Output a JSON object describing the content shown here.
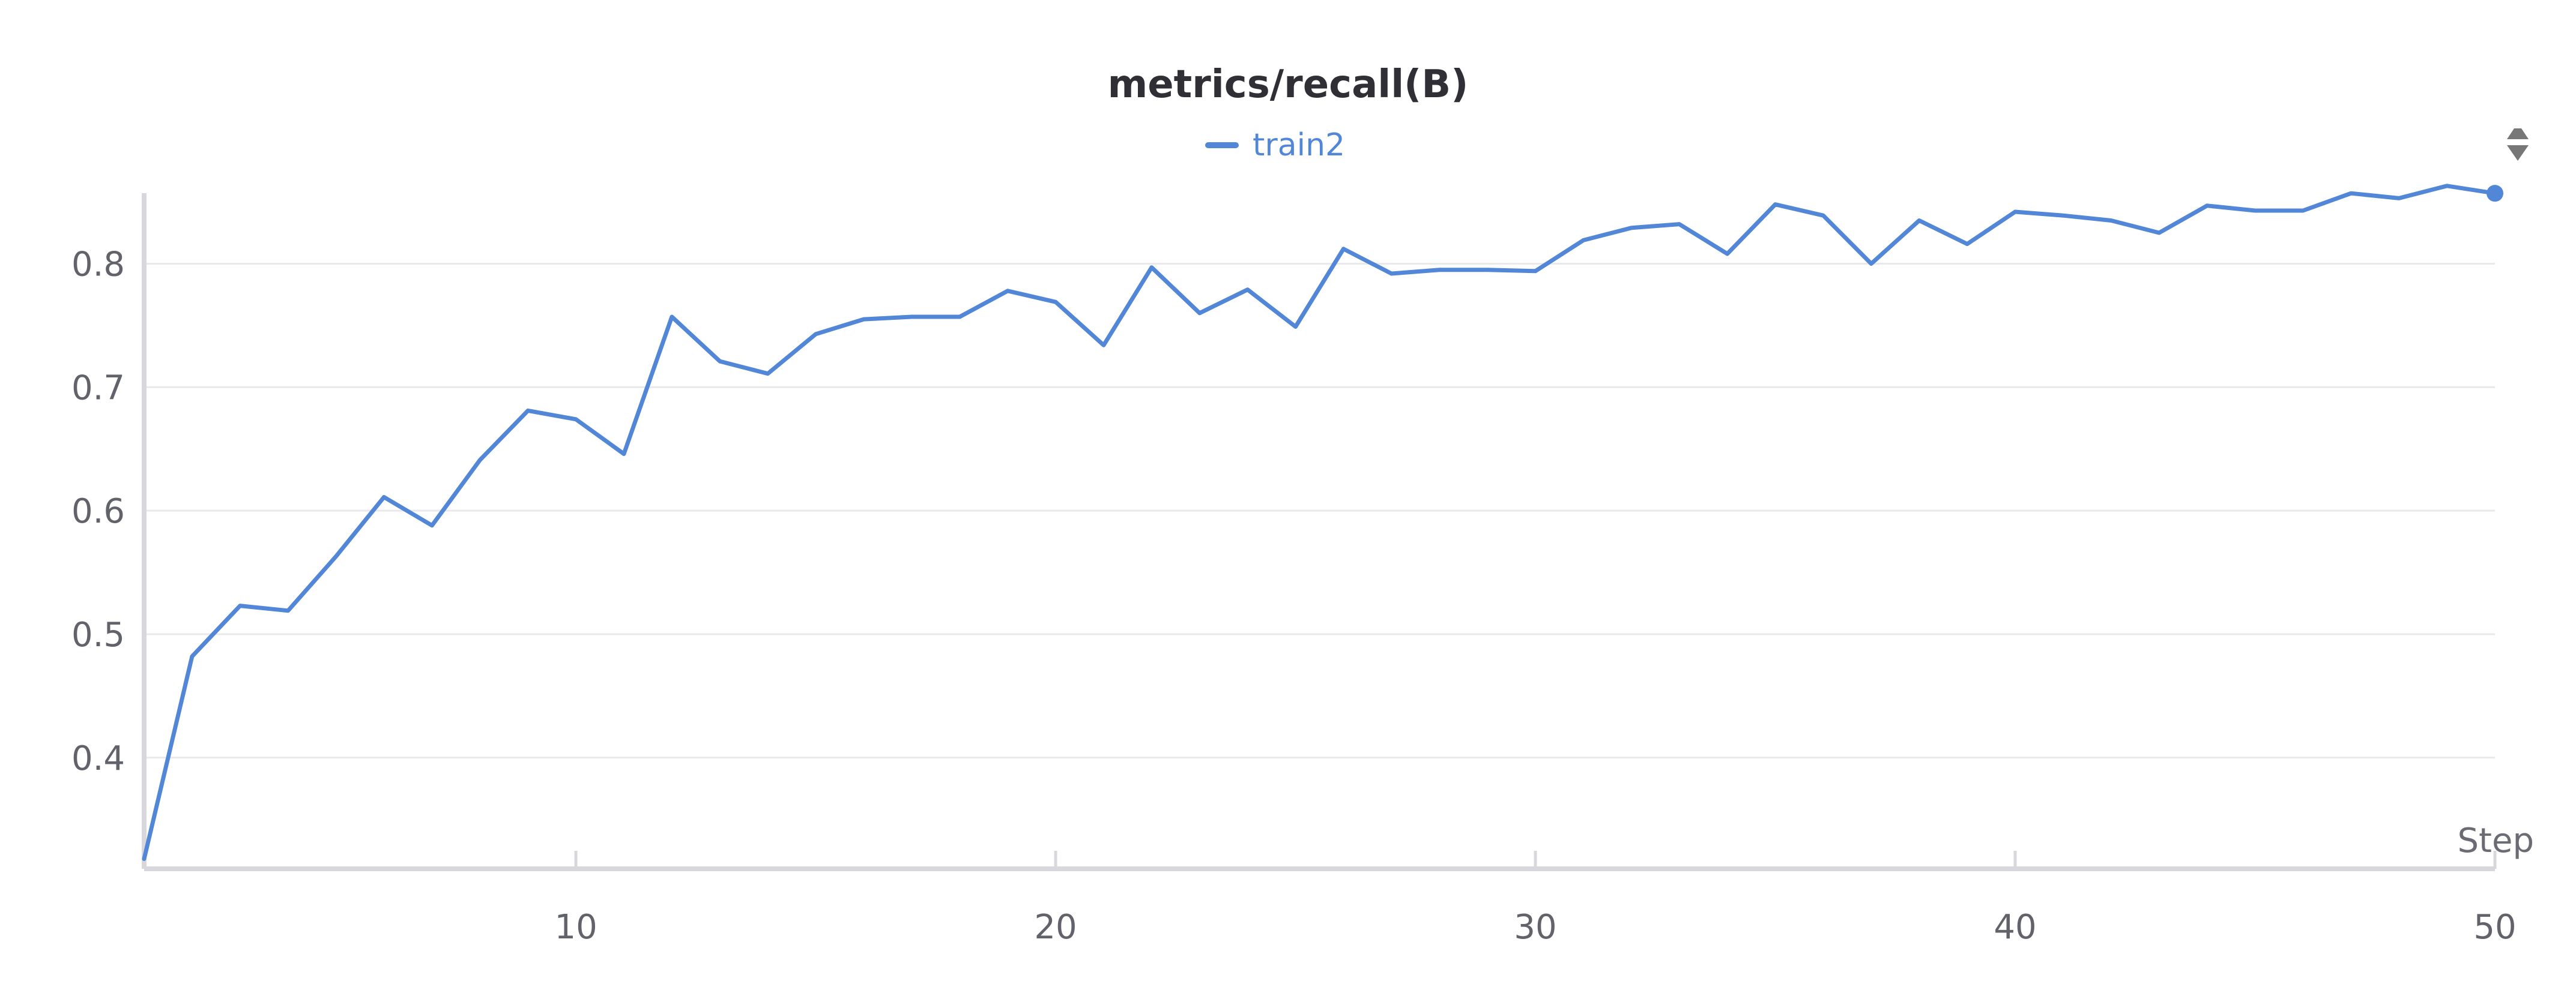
{
  "chart_data": {
    "type": "line",
    "title": "metrics/recall(B)",
    "xlabel": "Step",
    "ylabel": "",
    "xlim": [
      1,
      50
    ],
    "ylim": [
      0.31,
      0.86
    ],
    "x_ticks": [
      10,
      20,
      30,
      40,
      50
    ],
    "y_ticks": [
      0.4,
      0.5,
      0.6,
      0.7,
      0.8
    ],
    "grid": "horizontal",
    "legend_position": "top-center",
    "series": [
      {
        "name": "train2",
        "color": "#5287d8",
        "x": [
          1,
          2,
          3,
          4,
          5,
          6,
          7,
          8,
          9,
          10,
          11,
          12,
          13,
          14,
          15,
          16,
          17,
          18,
          19,
          20,
          21,
          22,
          23,
          24,
          25,
          26,
          27,
          28,
          29,
          30,
          31,
          32,
          33,
          34,
          35,
          36,
          37,
          38,
          39,
          40,
          41,
          42,
          43,
          44,
          45,
          46,
          47,
          48,
          49,
          50
        ],
        "y": [
          0.318,
          0.482,
          0.523,
          0.519,
          0.563,
          0.611,
          0.588,
          0.641,
          0.681,
          0.674,
          0.646,
          0.757,
          0.721,
          0.711,
          0.743,
          0.755,
          0.757,
          0.757,
          0.778,
          0.769,
          0.734,
          0.797,
          0.76,
          0.779,
          0.749,
          0.812,
          0.792,
          0.795,
          0.795,
          0.794,
          0.819,
          0.829,
          0.832,
          0.808,
          0.848,
          0.839,
          0.8,
          0.835,
          0.816,
          0.842,
          0.839,
          0.835,
          0.825,
          0.847,
          0.843,
          0.843,
          0.857,
          0.853,
          0.863,
          0.857
        ]
      }
    ]
  },
  "controls": {
    "scroll_icon": "up-down-arrows-icon"
  }
}
